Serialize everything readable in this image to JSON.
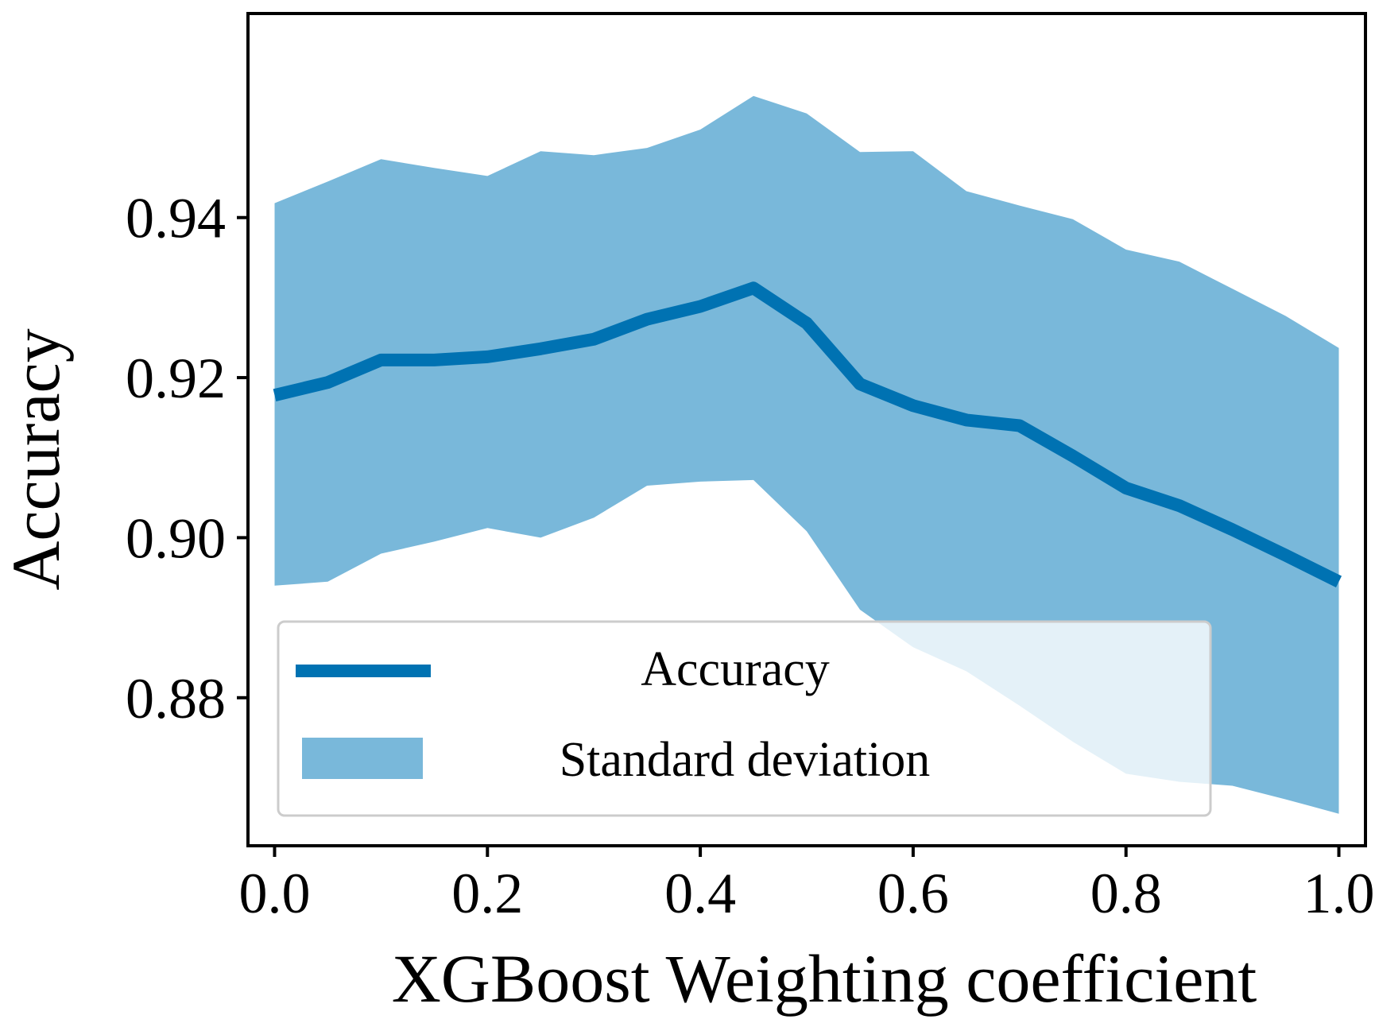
{
  "chart_data": {
    "type": "line",
    "title": "",
    "xlabel": "XGBoost Weighting coefficient",
    "ylabel": "Accuracy",
    "xlim": [
      -0.025,
      1.025
    ],
    "ylim": [
      0.8615,
      0.9655
    ],
    "xticks": [
      0.0,
      0.2,
      0.4,
      0.6,
      0.8,
      1.0
    ],
    "xtick_labels": [
      "0.0",
      "0.2",
      "0.4",
      "0.6",
      "0.8",
      "1.0"
    ],
    "yticks": [
      0.88,
      0.9,
      0.92,
      0.94
    ],
    "ytick_labels": [
      "0.88",
      "0.90",
      "0.92",
      "0.94"
    ],
    "grid": false,
    "legend_position": "lower-left",
    "x": [
      0.0,
      0.05,
      0.1,
      0.15,
      0.2,
      0.25,
      0.3,
      0.35,
      0.4,
      0.45,
      0.5,
      0.55,
      0.6,
      0.65,
      0.7,
      0.75,
      0.8,
      0.85,
      0.9,
      0.95,
      1.0
    ],
    "series": [
      {
        "name": "Accuracy",
        "kind": "line",
        "color": "#0072B2",
        "values": [
          0.9178,
          0.9194,
          0.9222,
          0.9222,
          0.9226,
          0.9236,
          0.9248,
          0.9273,
          0.9289,
          0.9312,
          0.9268,
          0.9192,
          0.9165,
          0.9147,
          0.914,
          0.9102,
          0.9062,
          0.904,
          0.901,
          0.8978,
          0.8945
        ]
      },
      {
        "name": "Standard deviation",
        "kind": "band",
        "color": "#79B8DA",
        "upper": [
          0.9418,
          0.9445,
          0.9473,
          0.9462,
          0.9452,
          0.9483,
          0.9478,
          0.9487,
          0.951,
          0.9552,
          0.953,
          0.9482,
          0.9483,
          0.9433,
          0.9415,
          0.9398,
          0.936,
          0.9345,
          0.9311,
          0.9277,
          0.9237
        ],
        "lower": [
          0.894,
          0.8945,
          0.898,
          0.8995,
          0.9012,
          0.9,
          0.9025,
          0.9065,
          0.907,
          0.9072,
          0.9008,
          0.891,
          0.8863,
          0.8833,
          0.879,
          0.8745,
          0.8705,
          0.8695,
          0.869,
          0.8673,
          0.8655
        ]
      }
    ]
  }
}
